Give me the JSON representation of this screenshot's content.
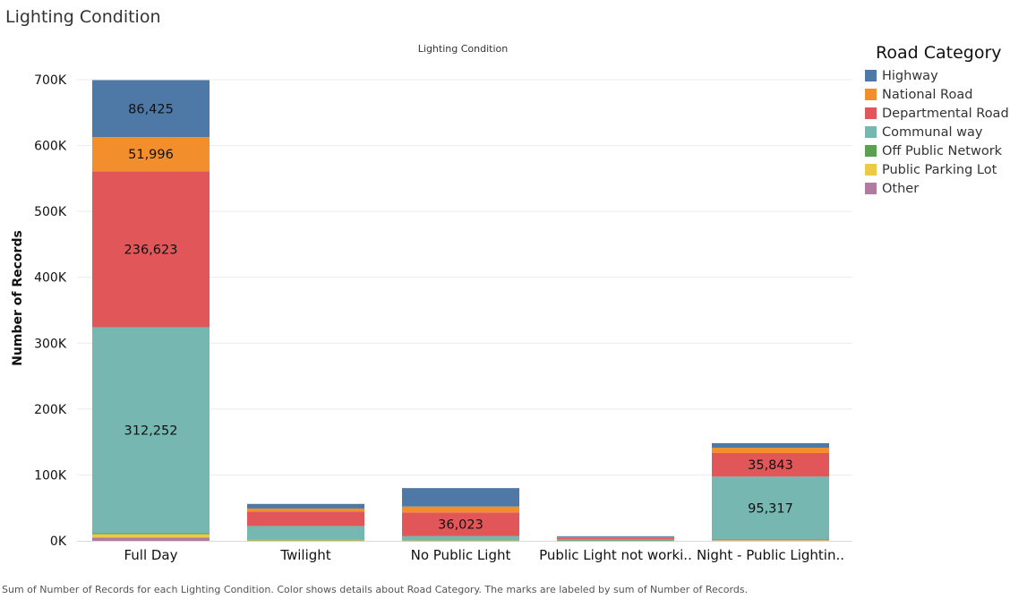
{
  "sheet_title": "Lighting Condition",
  "caption": "Sum of Number of Records for each Lighting Condition.  Color shows details about Road Category.  The marks are labeled by sum of Number of Records.",
  "colors": {
    "Highway": "#4e79a7",
    "National Road": "#f28e2b",
    "Departmental Road": "#e15759",
    "Communal way": "#76b7b2",
    "Off Public Network": "#59a14f",
    "Public Parking Lot": "#edc948",
    "Other": "#b07aa1"
  },
  "chart_data": {
    "type": "bar",
    "stacked": true,
    "title": "Lighting Condition",
    "xlabel": "",
    "ylabel": "Number of Records",
    "ylim": [
      0,
      720000
    ],
    "yticks": [
      0,
      100000,
      200000,
      300000,
      400000,
      500000,
      600000,
      700000
    ],
    "ytick_labels": [
      "0K",
      "100K",
      "200K",
      "300K",
      "400K",
      "500K",
      "600K",
      "700K"
    ],
    "categories": [
      "Full Day",
      "Twilight",
      "No Public Light",
      "Public Light not worki..",
      "Night - Public Lightin.."
    ],
    "legend_title": "Road Category",
    "legend_position": "right",
    "grid": true,
    "series": [
      {
        "name": "Other",
        "values": [
          5000,
          500,
          300,
          200,
          600
        ],
        "labels": [
          "",
          "",
          "",
          "",
          ""
        ]
      },
      {
        "name": "Public Parking Lot",
        "values": [
          5000,
          300,
          300,
          200,
          700
        ],
        "labels": [
          "",
          "",
          "",
          "",
          ""
        ]
      },
      {
        "name": "Off Public Network",
        "values": [
          2000,
          700,
          400,
          300,
          800
        ],
        "labels": [
          "",
          "",
          "",
          "",
          ""
        ]
      },
      {
        "name": "Communal way",
        "values": [
          312252,
          21000,
          6000,
          1500,
          95317
        ],
        "labels": [
          "312,252",
          "",
          "",
          "",
          "95,317"
        ]
      },
      {
        "name": "Departmental Road",
        "values": [
          236623,
          22000,
          36023,
          2500,
          35843
        ],
        "labels": [
          "236,623",
          "",
          "36,023",
          "",
          "35,843"
        ]
      },
      {
        "name": "National Road",
        "values": [
          51996,
          4500,
          9000,
          1000,
          8000
        ],
        "labels": [
          "51,996",
          "",
          "",
          "",
          ""
        ]
      },
      {
        "name": "Highway",
        "values": [
          86425,
          7000,
          28000,
          1300,
          7000
        ],
        "labels": [
          "86,425",
          "",
          "",
          "",
          ""
        ]
      }
    ],
    "legend_order": [
      "Highway",
      "National Road",
      "Departmental Road",
      "Communal way",
      "Off Public Network",
      "Public Parking Lot",
      "Other"
    ]
  }
}
